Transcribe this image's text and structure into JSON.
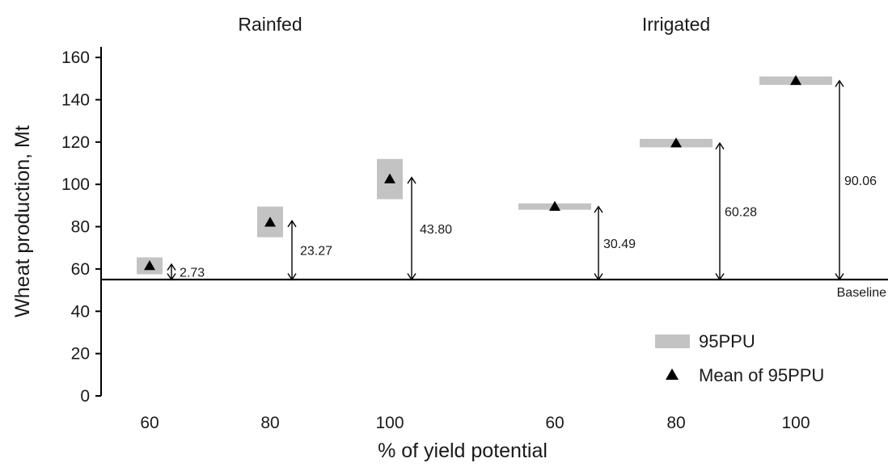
{
  "chart_data": {
    "type": "scatter",
    "ylabel": "Wheat production, Mt",
    "xlabel": "% of yield potential",
    "ylim": [
      0,
      165
    ],
    "yticks": [
      0,
      20,
      40,
      60,
      80,
      100,
      120,
      140,
      160
    ],
    "grid": false,
    "baseline": {
      "value": 55,
      "label": "Baseline"
    },
    "groups": [
      {
        "name": "Rainfed",
        "points": [
          {
            "x": "60",
            "mean": 61.5,
            "low": 57.5,
            "high": 65.5,
            "delta": "2.73"
          },
          {
            "x": "80",
            "mean": 82.0,
            "low": 75.0,
            "high": 89.5,
            "delta": "23.27"
          },
          {
            "x": "100",
            "mean": 102.5,
            "low": 93.0,
            "high": 112.0,
            "delta": "43.80"
          }
        ]
      },
      {
        "name": "Irrigated",
        "points": [
          {
            "x": "60",
            "mean": 89.5,
            "low": 88.0,
            "high": 91.0,
            "delta": "30.49"
          },
          {
            "x": "80",
            "mean": 119.5,
            "low": 117.5,
            "high": 121.5,
            "delta": "60.28"
          },
          {
            "x": "100",
            "mean": 149.0,
            "low": 147.0,
            "high": 151.0,
            "delta": "90.06"
          }
        ]
      }
    ],
    "legend": {
      "position": "bottom-right",
      "entries": [
        {
          "label": "95PPU",
          "marker": "gray-bar"
        },
        {
          "label": "Mean of 95PPU",
          "marker": "triangle"
        }
      ]
    },
    "colors": {
      "band": "#c3c3c3",
      "marker": "#000000",
      "axis": "#000000"
    }
  }
}
